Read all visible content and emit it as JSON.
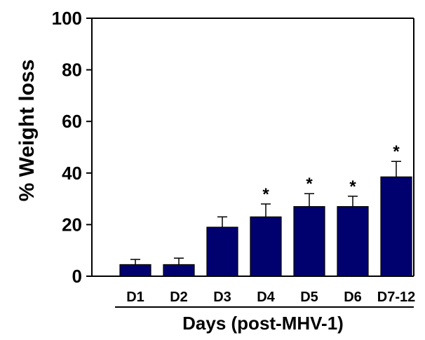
{
  "chart_data": {
    "type": "bar",
    "title": "",
    "xlabel": "Days (post-MHV-1)",
    "ylabel": "% Weight loss",
    "categories": [
      "D1",
      "D2",
      "D3",
      "D4",
      "D5",
      "D6",
      "D7-12"
    ],
    "values": [
      4.5,
      4.5,
      19,
      23,
      27,
      27,
      38.5
    ],
    "error_plus": [
      2,
      2.5,
      4,
      5,
      5,
      4,
      6
    ],
    "significant": [
      false,
      false,
      false,
      true,
      true,
      true,
      true
    ],
    "significance_marker": "*",
    "ylim": [
      0,
      100
    ],
    "yticks": [
      "0",
      "20",
      "40",
      "60",
      "80",
      "100"
    ],
    "grid": false,
    "legend": "none",
    "bar_color": "#00006e"
  }
}
